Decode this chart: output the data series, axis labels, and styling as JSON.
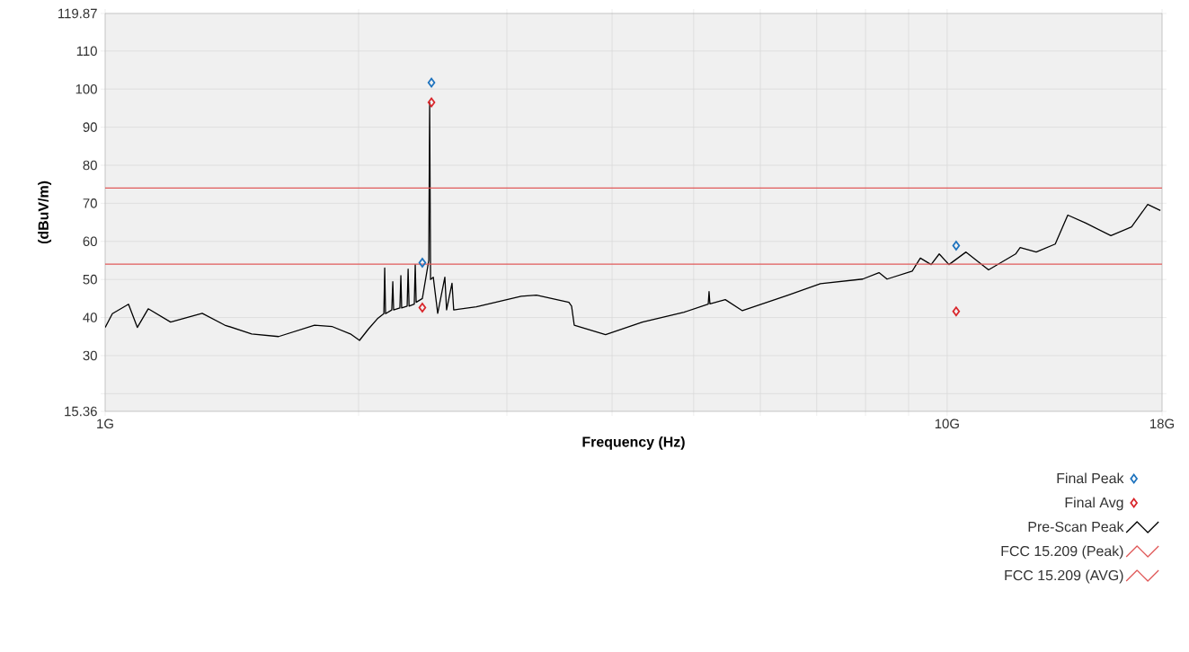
{
  "chart_data": {
    "type": "line",
    "xlabel": "Frequency (Hz)",
    "ylabel": "(dBuV/m)",
    "log": "x",
    "grid": true,
    "legend": "bottom right",
    "xlim": [
      1,
      18
    ],
    "xticks": [
      {
        "value": 1,
        "label": "1G"
      },
      {
        "value": 2,
        "label": null
      },
      {
        "value": 3,
        "label": null
      },
      {
        "value": 4,
        "label": null
      },
      {
        "value": 5,
        "label": null
      },
      {
        "value": 6,
        "label": null
      },
      {
        "value": 7,
        "label": null
      },
      {
        "value": 8,
        "label": null
      },
      {
        "value": 9,
        "label": null
      },
      {
        "value": 10,
        "label": "10G"
      },
      {
        "value": 18,
        "label": "18G"
      }
    ],
    "ylim": [
      15.36,
      119.87
    ],
    "yticks": [
      15.36,
      {
        "value": 20,
        "label": null
      },
      30,
      40,
      50,
      60,
      70,
      80,
      90,
      100,
      110,
      119.87
    ],
    "series": [
      {
        "name": "Final Peak",
        "type": "scatter",
        "marker": "diamond",
        "color": "#1e73be",
        "x": [
          2.381,
          2.441,
          10.25
        ],
        "values": [
          54.4,
          101.7,
          58.9
        ]
      },
      {
        "name": "Final Avg",
        "type": "scatter",
        "marker": "diamond",
        "color": "#d9262b",
        "x": [
          2.381,
          2.441,
          10.25
        ],
        "values": [
          42.6,
          96.5,
          41.6
        ]
      },
      {
        "name": "Pre-Scan Peak",
        "color": "#000000",
        "x": [
          1.0,
          1.02,
          1.066,
          1.092,
          1.125,
          1.196,
          1.304,
          1.387,
          1.493,
          1.607,
          1.773,
          1.862,
          1.956,
          2.005,
          2.055,
          2.106,
          2.143,
          2.148,
          2.153,
          2.19,
          2.196,
          2.201,
          2.239,
          2.245,
          2.25,
          2.284,
          2.29,
          2.296,
          2.329,
          2.335,
          2.341,
          2.381,
          2.423,
          2.429,
          2.435,
          2.453,
          2.483,
          2.532,
          2.544,
          2.582,
          2.594,
          2.76,
          3.12,
          3.253,
          3.555,
          3.581,
          3.607,
          3.93,
          4.347,
          4.871,
          5.203,
          5.215,
          5.227,
          5.452,
          5.713,
          6.475,
          7.072,
          7.94,
          8.3,
          8.485,
          9.09,
          9.294,
          9.572,
          9.786,
          10.05,
          10.53,
          11.2,
          12.06,
          12.21,
          12.76,
          13.44,
          13.91,
          14.61,
          15.65,
          16.56,
          17.31,
          17.92
        ],
        "values": [
          37.4,
          41,
          43.5,
          37.4,
          42.3,
          38.8,
          41.1,
          38,
          35.7,
          35,
          38,
          37.6,
          35.7,
          34,
          37,
          39.7,
          41,
          53,
          41,
          42,
          49.4,
          42,
          42.5,
          51,
          42.5,
          43,
          52.7,
          43,
          43.5,
          53.9,
          44,
          45,
          55,
          96.5,
          50,
          50.6,
          41.1,
          50.6,
          42,
          49,
          42,
          42.8,
          45.6,
          45.9,
          44,
          43,
          38,
          35.5,
          38.8,
          41.4,
          43.5,
          46.8,
          43.6,
          44.7,
          41.8,
          45.9,
          48.9,
          50.1,
          51.8,
          50.1,
          52.2,
          55.6,
          53.9,
          56.7,
          53.9,
          57.2,
          52.5,
          56.7,
          58.4,
          57.2,
          59.3,
          66.9,
          64.8,
          61.5,
          63.8,
          69.7,
          68.1
        ]
      },
      {
        "name": "FCC 15.209  (Peak)",
        "color": "#e05a5a",
        "x": [
          1,
          18
        ],
        "values": [
          74,
          74
        ]
      },
      {
        "name": "FCC 15.209 (AVG)",
        "color": "#e05a5a",
        "x": [
          1,
          18
        ],
        "values": [
          54,
          54
        ]
      }
    ]
  }
}
